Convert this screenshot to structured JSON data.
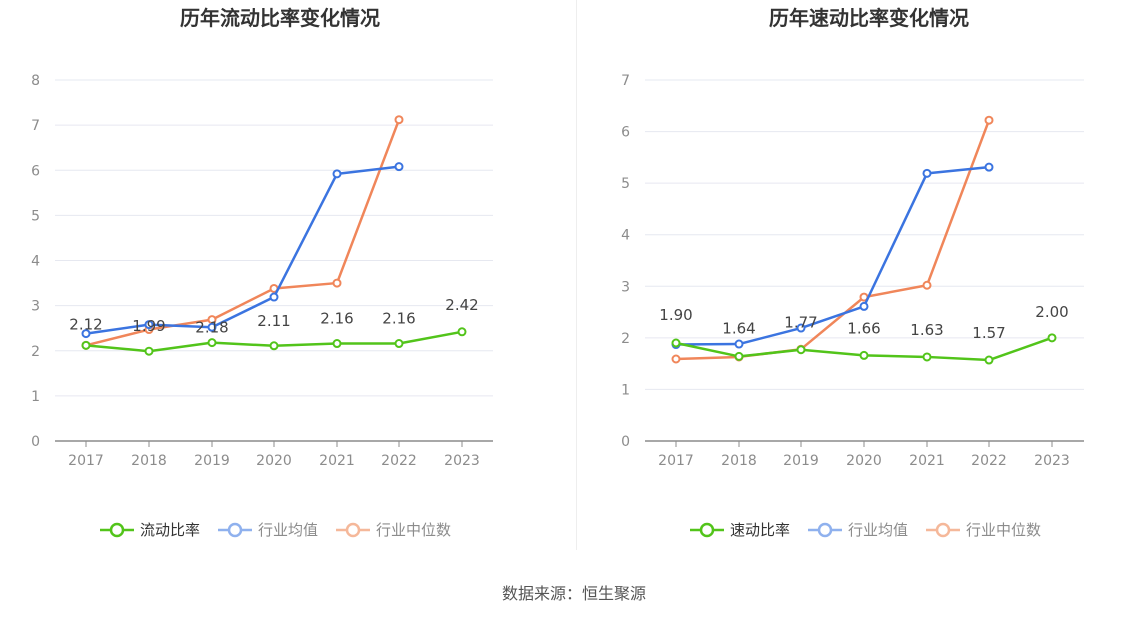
{
  "source_text": "数据来源：恒生聚源",
  "chart_data": [
    {
      "type": "line",
      "title": "历年流动比率变化情况",
      "x": [
        "2017",
        "2018",
        "2019",
        "2020",
        "2021",
        "2022",
        "2023"
      ],
      "ylim": [
        0,
        8
      ],
      "yticks": [
        0,
        1,
        2,
        3,
        4,
        5,
        6,
        7,
        8
      ],
      "grid": true,
      "legend_position": "bottom",
      "series": [
        {
          "name": "流动比率",
          "color": "#52c41a",
          "values": [
            2.12,
            1.99,
            2.18,
            2.11,
            2.16,
            2.16,
            2.42
          ],
          "labels": [
            "2.12",
            "1.99",
            "2.18",
            "2.11",
            "2.16",
            "2.16",
            "2.42"
          ]
        },
        {
          "name": "行业均值",
          "color": "#3b74e0",
          "values": [
            2.38,
            2.58,
            2.52,
            3.19,
            5.92,
            6.08,
            null
          ]
        },
        {
          "name": "行业中位数",
          "color": "#f0865a",
          "values": [
            2.12,
            2.47,
            2.69,
            3.38,
            3.5,
            7.12,
            null
          ]
        }
      ]
    },
    {
      "type": "line",
      "title": "历年速动比率变化情况",
      "x": [
        "2017",
        "2018",
        "2019",
        "2020",
        "2021",
        "2022",
        "2023"
      ],
      "ylim": [
        0,
        7
      ],
      "yticks": [
        0,
        1,
        2,
        3,
        4,
        5,
        6,
        7
      ],
      "grid": true,
      "legend_position": "bottom",
      "series": [
        {
          "name": "速动比率",
          "color": "#52c41a",
          "values": [
            1.9,
            1.64,
            1.77,
            1.66,
            1.63,
            1.57,
            2.0
          ],
          "labels": [
            "1.90",
            "1.64",
            "1.77",
            "1.66",
            "1.63",
            "1.57",
            "2.00"
          ]
        },
        {
          "name": "行业均值",
          "color": "#3b74e0",
          "values": [
            1.87,
            1.88,
            2.19,
            2.61,
            5.19,
            5.31,
            null
          ]
        },
        {
          "name": "行业中位数",
          "color": "#f0865a",
          "values": [
            1.59,
            1.63,
            1.78,
            2.79,
            3.02,
            6.22,
            null
          ]
        }
      ]
    }
  ]
}
